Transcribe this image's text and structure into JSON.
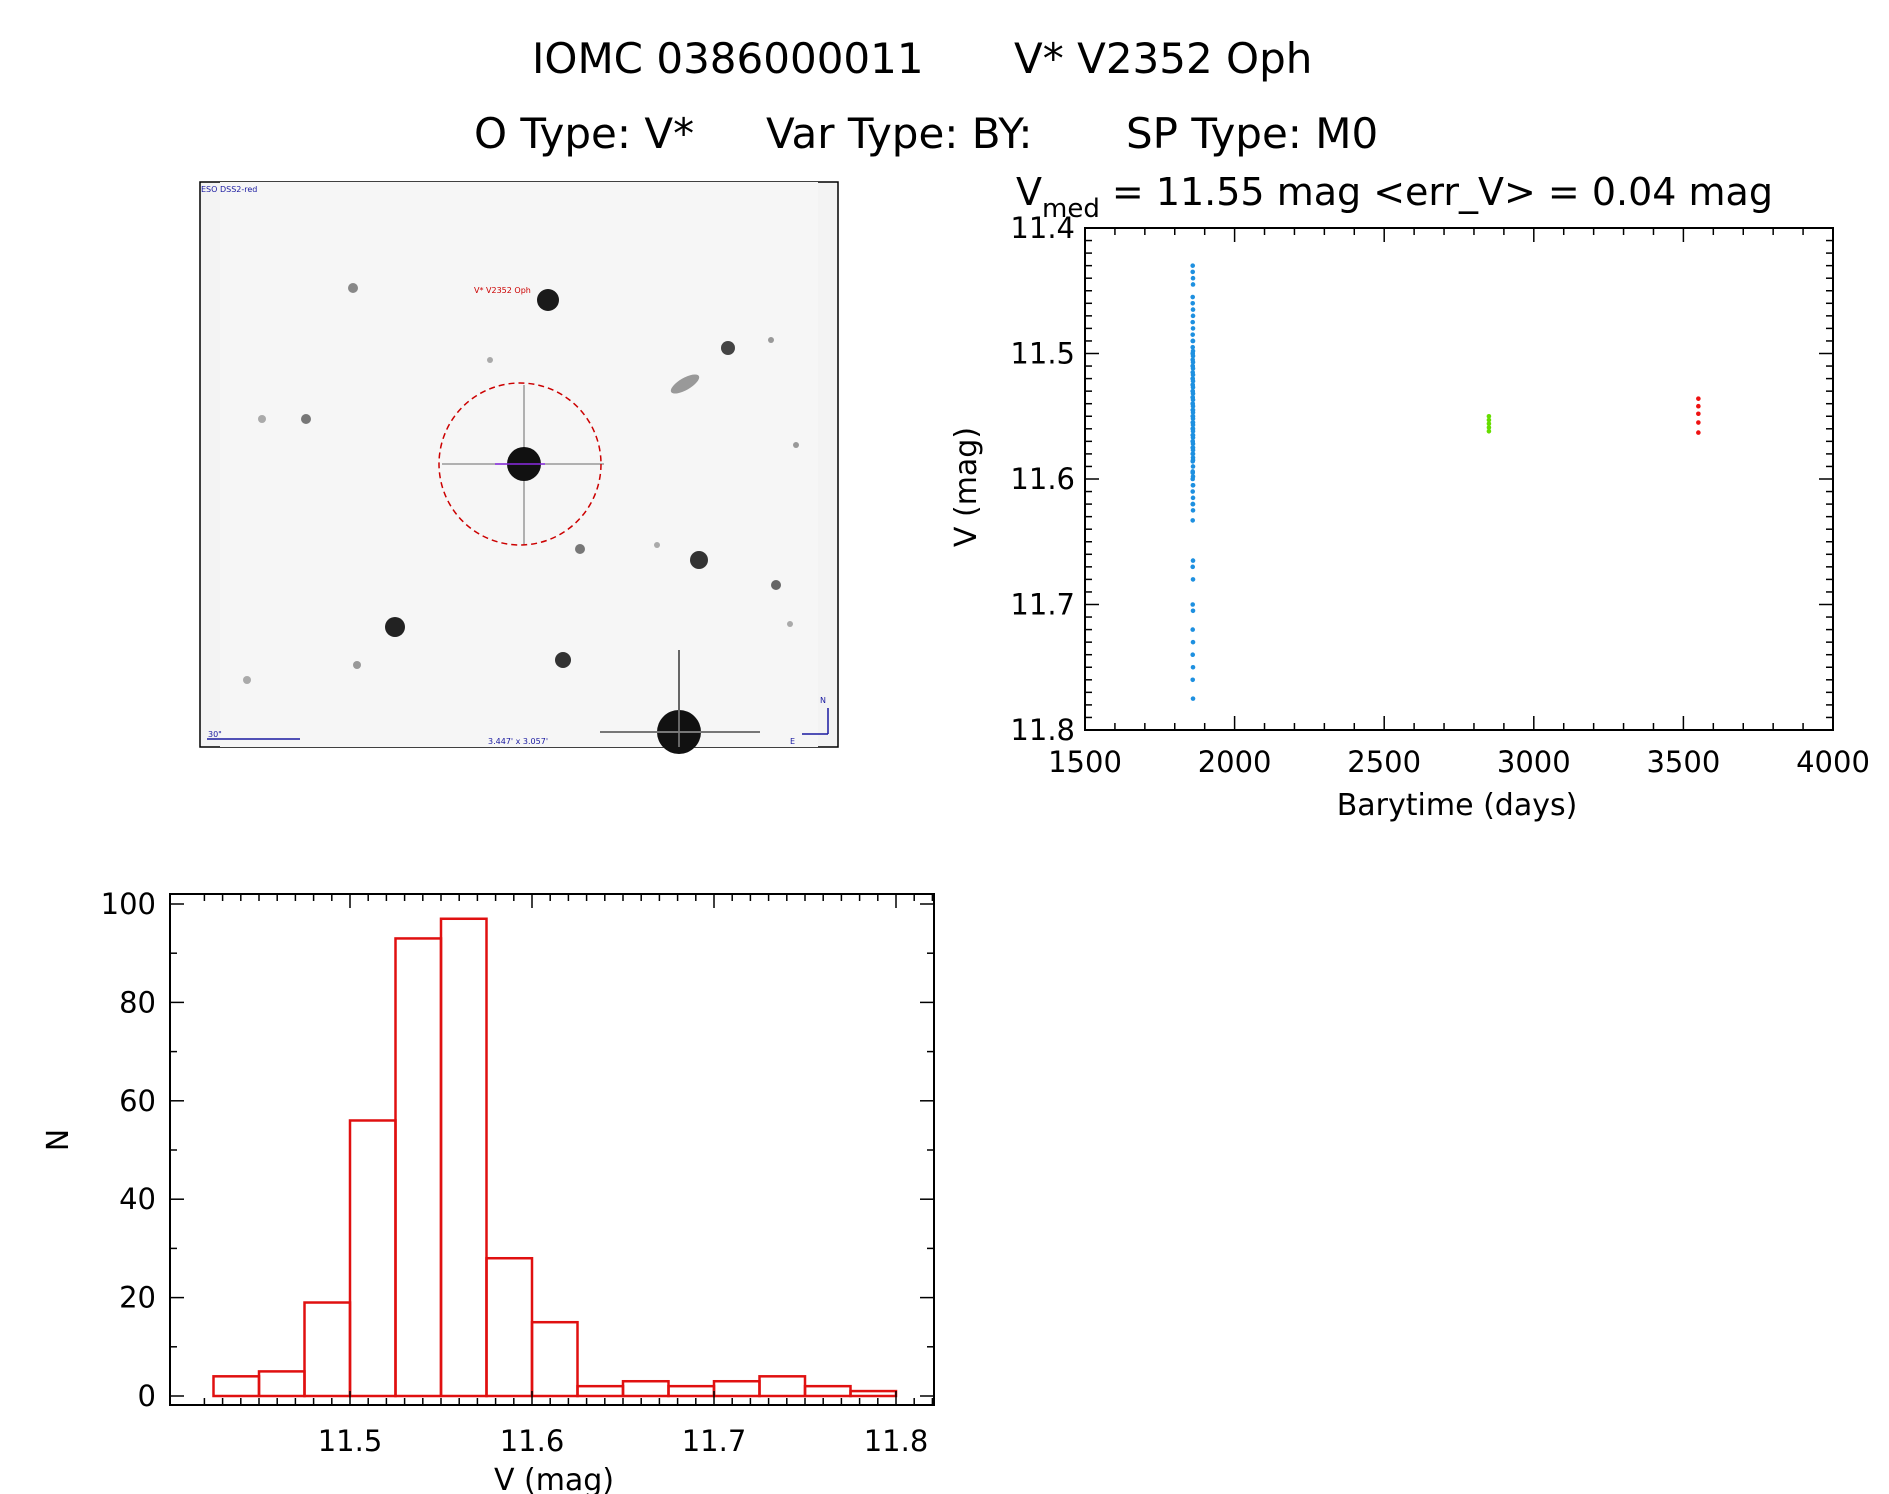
{
  "figure": {
    "title_line1_id": "IOMC 0386000011",
    "title_line1_name": "V* V2352 Oph",
    "title_line2_otype": "O Type: V*",
    "title_line2_vartype": "Var Type: BY:",
    "title_line2_sptype": "SP Type: M0"
  },
  "image_panel": {
    "survey_label": "ESO DSS2-red",
    "target_label": "V* V2352 Oph",
    "scale_label": "30\"",
    "fov_label": "3.447' x 3.057'",
    "north_label": "N",
    "east_label": "E"
  },
  "colors": {
    "axes": "#000000",
    "histogram": "#e01010",
    "series_1": "#1e90e0",
    "series_2": "#66dd00",
    "series_3": "#ee1111",
    "finder_circle": "#cc0000",
    "annotation_blue": "#1a1aa0"
  },
  "chart_data": [
    {
      "type": "scatter",
      "title_prefix": "V",
      "title_sub": "med",
      "title_rest": " = 11.55 mag <err_V> = 0.04 mag",
      "xlabel": "Barytime (days)",
      "ylabel": "V (mag)",
      "xlim": [
        1500,
        4000
      ],
      "ylim": [
        11.8,
        11.4
      ],
      "xticks": [
        1500,
        2000,
        2500,
        3000,
        3500,
        4000
      ],
      "xtick_labels": [
        "1500",
        "2000",
        "2500",
        "3000",
        "3500",
        "4000"
      ],
      "yticks": [
        11.4,
        11.5,
        11.6,
        11.7,
        11.8
      ],
      "ytick_labels": [
        "11.4",
        "11.5",
        "11.6",
        "11.7",
        "11.8"
      ],
      "series": [
        {
          "name": "series-1",
          "color": "#1e90e0",
          "x": [
            1860,
            1860,
            1861,
            1861,
            1860,
            1861,
            1860,
            1861,
            1860,
            1861,
            1860,
            1861,
            1860,
            1861,
            1860,
            1861,
            1860,
            1861,
            1860,
            1861,
            1860,
            1861,
            1860,
            1861,
            1860,
            1861,
            1860,
            1861,
            1860,
            1861,
            1860,
            1861,
            1860,
            1861,
            1860,
            1861,
            1860,
            1861,
            1860,
            1861,
            1860,
            1861,
            1860,
            1861,
            1860,
            1861,
            1860,
            1861,
            1860,
            1861,
            1860,
            1861,
            1860,
            1861,
            1860,
            1861,
            1860,
            1861,
            1860,
            1861,
            1860,
            1861,
            1860,
            1861,
            1860,
            1861,
            1860,
            1861,
            1860,
            1861,
            1860,
            1861,
            1860,
            1861,
            1860,
            1861,
            1860,
            1861,
            1860,
            1861,
            1860,
            1861,
            1860,
            1861,
            1860,
            1861,
            1860,
            1861,
            1860,
            1861
          ],
          "y": [
            11.43,
            11.435,
            11.44,
            11.445,
            11.455,
            11.465,
            11.475,
            11.48,
            11.485,
            11.49,
            11.495,
            11.498,
            11.5,
            11.502,
            11.505,
            11.507,
            11.51,
            11.512,
            11.515,
            11.517,
            11.52,
            11.522,
            11.525,
            11.527,
            11.53,
            11.532,
            11.535,
            11.537,
            11.54,
            11.542,
            11.545,
            11.547,
            11.55,
            11.552,
            11.555,
            11.557,
            11.56,
            11.562,
            11.565,
            11.567,
            11.57,
            11.572,
            11.575,
            11.577,
            11.58,
            11.583,
            11.586,
            11.59,
            11.594,
            11.598,
            11.6,
            11.605,
            11.61,
            11.615,
            11.62,
            11.625,
            11.633,
            11.665,
            11.67,
            11.68,
            11.7,
            11.705,
            11.72,
            11.73,
            11.74,
            11.75,
            11.76,
            11.775,
            11.54,
            11.56,
            11.53,
            11.55,
            11.57,
            11.545,
            11.535,
            11.565,
            11.525,
            11.555,
            11.52,
            11.58,
            11.51,
            11.575,
            11.5,
            11.585,
            11.595,
            11.605,
            11.49,
            11.47,
            11.46,
            11.62
          ]
        },
        {
          "name": "series-2",
          "color": "#66dd00",
          "x": [
            2850,
            2850,
            2850,
            2850,
            2850
          ],
          "y": [
            11.55,
            11.553,
            11.556,
            11.559,
            11.562
          ]
        },
        {
          "name": "series-3",
          "color": "#ee1111",
          "x": [
            3550,
            3550,
            3550,
            3550,
            3550
          ],
          "y": [
            11.536,
            11.542,
            11.548,
            11.555,
            11.563
          ]
        }
      ]
    },
    {
      "type": "bar",
      "title": "",
      "xlabel": "V (mag)",
      "ylabel": "N",
      "xlim": [
        11.41,
        11.835
      ],
      "ylim": [
        0,
        100
      ],
      "xticks": [
        11.5,
        11.6,
        11.7,
        11.8
      ],
      "xtick_labels": [
        "11.5",
        "11.6",
        "11.7",
        "11.8"
      ],
      "yticks": [
        0,
        20,
        40,
        60,
        80,
        100
      ],
      "ytick_labels": [
        "0",
        "20",
        "40",
        "60",
        "80",
        "100"
      ],
      "bin_width": 0.025,
      "bin_edges_start": 11.425,
      "values": [
        4,
        5,
        19,
        56,
        93,
        97,
        28,
        15,
        2,
        3,
        2,
        3,
        4,
        2,
        1
      ]
    }
  ]
}
